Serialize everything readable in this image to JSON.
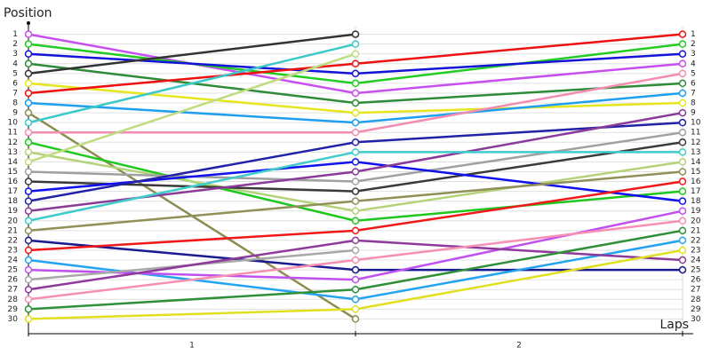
{
  "chart_data": {
    "type": "line",
    "y_label": "Position",
    "x_label": "Laps",
    "x": [
      0,
      1,
      2
    ],
    "xlim": [
      0,
      2
    ],
    "xticks": [
      {
        "value": 0.5,
        "label": "1"
      },
      {
        "value": 1.5,
        "label": "2"
      }
    ],
    "ylim": [
      31.5,
      -0.5
    ],
    "yticks": [
      1,
      2,
      3,
      4,
      5,
      6,
      7,
      8,
      9,
      10,
      11,
      12,
      13,
      14,
      15,
      16,
      17,
      18,
      19,
      20,
      21,
      22,
      23,
      24,
      25,
      26,
      27,
      28,
      29,
      30
    ],
    "grid": true,
    "series": [
      {
        "color": "#c84ef0",
        "values": [
          1,
          7,
          4
        ]
      },
      {
        "color": "#22cc22",
        "values": [
          2,
          6,
          2
        ]
      },
      {
        "color": "#1414d8",
        "values": [
          3,
          5,
          3
        ]
      },
      {
        "color": "#2e8b37",
        "values": [
          4,
          8,
          6
        ]
      },
      {
        "color": "#333333",
        "values": [
          5,
          1,
          null
        ]
      },
      {
        "color": "#e6e61e",
        "values": [
          6,
          9,
          8
        ]
      },
      {
        "color": "#ee1111",
        "values": [
          7,
          4,
          1
        ]
      },
      {
        "color": "#1e9ff0",
        "values": [
          8,
          10,
          7
        ]
      },
      {
        "color": "#8c8c50",
        "values": [
          9,
          30,
          null
        ]
      },
      {
        "color": "#3cc8c8",
        "values": [
          10,
          2,
          null
        ]
      },
      {
        "color": "#f28cb0",
        "values": [
          11,
          11,
          5
        ]
      },
      {
        "color": "#1ec81e",
        "values": [
          12,
          20,
          17
        ]
      },
      {
        "color": "#b4d278",
        "values": [
          13,
          19,
          14
        ]
      },
      {
        "color": "#c0dc80",
        "values": [
          14,
          3,
          null
        ]
      },
      {
        "color": "#a0a0a0",
        "values": [
          15,
          16,
          11
        ]
      },
      {
        "color": "#3a3a3a",
        "values": [
          16,
          17,
          12
        ]
      },
      {
        "color": "#1010f0",
        "values": [
          17,
          14,
          18
        ]
      },
      {
        "color": "#2222a8",
        "values": [
          18,
          12,
          10
        ]
      },
      {
        "color": "#8a3a98",
        "values": [
          19,
          15,
          9
        ]
      },
      {
        "color": "#40cccc",
        "values": [
          20,
          13,
          13
        ]
      },
      {
        "color": "#909058",
        "values": [
          21,
          18,
          15
        ]
      },
      {
        "color": "#1a1a90",
        "values": [
          22,
          25,
          25
        ]
      },
      {
        "color": "#f01818",
        "values": [
          23,
          21,
          16
        ]
      },
      {
        "color": "#24a4f0",
        "values": [
          24,
          28,
          22
        ]
      },
      {
        "color": "#c050f0",
        "values": [
          25,
          26,
          19
        ]
      },
      {
        "color": "#a8a8a8",
        "values": [
          26,
          23,
          null
        ]
      },
      {
        "color": "#8e3a9a",
        "values": [
          27,
          22,
          24
        ]
      },
      {
        "color": "#f590b4",
        "values": [
          28,
          24,
          20
        ]
      },
      {
        "color": "#30903a",
        "values": [
          29,
          27,
          21
        ]
      },
      {
        "color": "#e0e020",
        "values": [
          30,
          29,
          23
        ]
      }
    ]
  }
}
